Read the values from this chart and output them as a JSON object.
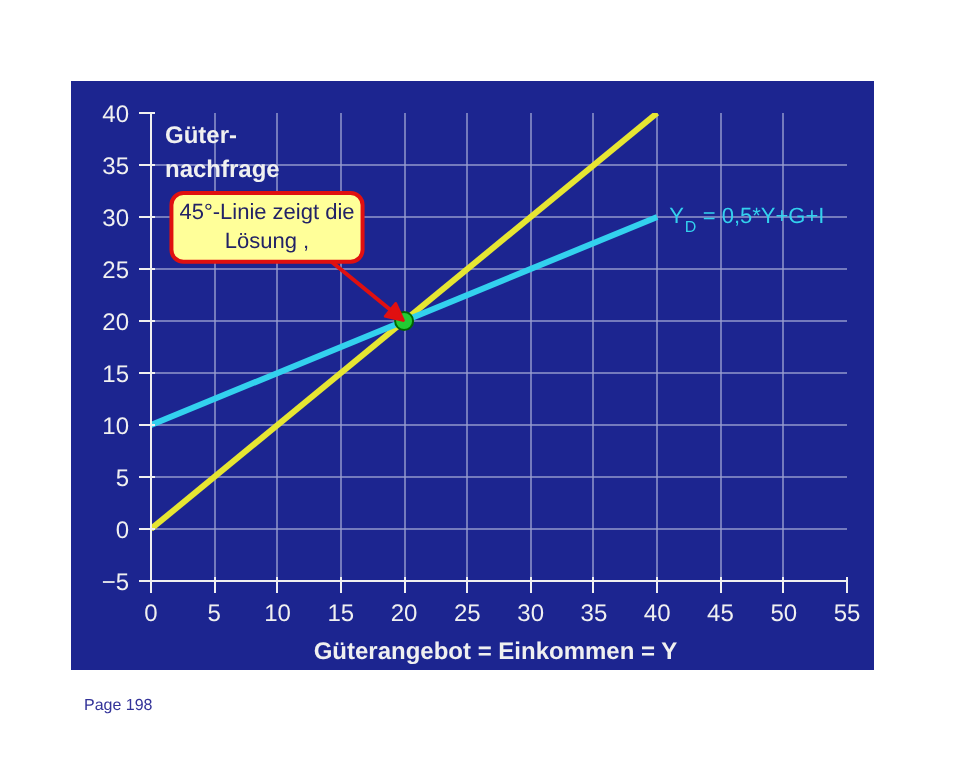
{
  "chart_data": {
    "type": "line",
    "xlabel": "Güterangebot = Einkommen  = Y",
    "ylabel": "Güter-\nnachfrage",
    "xlim": [
      0,
      55
    ],
    "xticks": [
      0,
      5,
      10,
      15,
      20,
      25,
      30,
      35,
      40,
      45,
      50,
      55
    ],
    "ylim": [
      -5,
      40
    ],
    "yticks": [
      -5,
      0,
      5,
      10,
      15,
      20,
      25,
      30,
      35,
      40
    ],
    "grid": true,
    "series": [
      {
        "x": [
          0,
          40
        ],
        "values": [
          0,
          40
        ],
        "color": "#e6e632"
      },
      {
        "name": "Y$_{D}$ = 0,5*Y+G+I",
        "x": [
          0,
          40
        ],
        "values": [
          10,
          30
        ],
        "color": "#33d1ee"
      },
      {
        "type": "scatter",
        "x": [
          20
        ],
        "values": [
          20
        ],
        "color": "#22cc33",
        "marker": "circle"
      }
    ],
    "annotations": [
      {
        "text": "45°-Linie zeigt die\nLösung ,",
        "x": 20,
        "y": 20
      },
      "Page 198"
    ]
  }
}
